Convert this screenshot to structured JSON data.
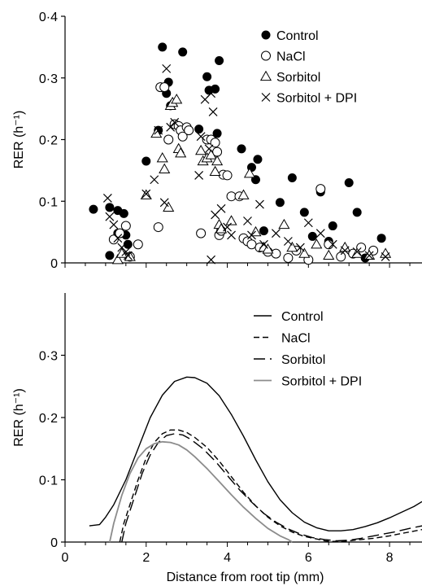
{
  "chart_data": [
    {
      "type": "scatter",
      "title": "",
      "xlabel": "",
      "ylabel": "RER (h⁻¹)",
      "xlim": [
        0,
        8.8
      ],
      "ylim": [
        0,
        0.4
      ],
      "yticks": [
        0,
        0.1,
        0.2,
        0.3,
        0.4
      ],
      "ytick_labels": [
        "0",
        "0·1",
        "0·2",
        "0·3",
        "0·4"
      ],
      "xticks_minor_step": 0.5,
      "grid": false,
      "legend_position": "top-right",
      "series": [
        {
          "name": "Control",
          "marker": "filled-circle",
          "points": [
            [
              0.7,
              0.087
            ],
            [
              1.1,
              0.09
            ],
            [
              1.1,
              0.012
            ],
            [
              1.3,
              0.085
            ],
            [
              1.3,
              0.048
            ],
            [
              1.45,
              0.08
            ],
            [
              1.5,
              0.045
            ],
            [
              1.55,
              0.03
            ],
            [
              2.0,
              0.165
            ],
            [
              2.3,
              0.215
            ],
            [
              2.4,
              0.35
            ],
            [
              2.5,
              0.275
            ],
            [
              2.55,
              0.293
            ],
            [
              2.6,
              0.255
            ],
            [
              2.9,
              0.342
            ],
            [
              3.3,
              0.217
            ],
            [
              3.5,
              0.302
            ],
            [
              3.55,
              0.28
            ],
            [
              3.7,
              0.282
            ],
            [
              3.75,
              0.21
            ],
            [
              3.8,
              0.328
            ],
            [
              4.35,
              0.185
            ],
            [
              4.6,
              0.155
            ],
            [
              4.7,
              0.135
            ],
            [
              4.75,
              0.168
            ],
            [
              4.9,
              0.052
            ],
            [
              5.3,
              0.098
            ],
            [
              5.6,
              0.138
            ],
            [
              5.9,
              0.082
            ],
            [
              6.1,
              0.043
            ],
            [
              6.3,
              0.115
            ],
            [
              6.5,
              0.035
            ],
            [
              6.6,
              0.06
            ],
            [
              7.0,
              0.13
            ],
            [
              7.2,
              0.082
            ],
            [
              7.4,
              0.008
            ],
            [
              7.8,
              0.04
            ]
          ]
        },
        {
          "name": "NaCl",
          "marker": "open-circle",
          "points": [
            [
              1.2,
              0.038
            ],
            [
              1.35,
              0.048
            ],
            [
              1.5,
              0.06
            ],
            [
              1.6,
              0.01
            ],
            [
              1.8,
              0.03
            ],
            [
              2.3,
              0.058
            ],
            [
              2.35,
              0.285
            ],
            [
              2.45,
              0.285
            ],
            [
              2.55,
              0.2
            ],
            [
              2.7,
              0.225
            ],
            [
              2.8,
              0.222
            ],
            [
              2.85,
              0.215
            ],
            [
              2.9,
              0.205
            ],
            [
              3.0,
              0.22
            ],
            [
              3.05,
              0.215
            ],
            [
              3.35,
              0.048
            ],
            [
              3.5,
              0.2
            ],
            [
              3.6,
              0.2
            ],
            [
              3.7,
              0.195
            ],
            [
              3.75,
              0.18
            ],
            [
              3.8,
              0.045
            ],
            [
              3.85,
              0.052
            ],
            [
              3.9,
              0.143
            ],
            [
              4.0,
              0.142
            ],
            [
              4.1,
              0.108
            ],
            [
              4.3,
              0.108
            ],
            [
              4.4,
              0.04
            ],
            [
              4.5,
              0.035
            ],
            [
              4.6,
              0.03
            ],
            [
              4.8,
              0.025
            ],
            [
              5.0,
              0.018
            ],
            [
              5.2,
              0.015
            ],
            [
              5.5,
              0.008
            ],
            [
              5.7,
              0.02
            ],
            [
              6.0,
              0.005
            ],
            [
              6.3,
              0.12
            ],
            [
              6.5,
              0.03
            ],
            [
              6.8,
              0.01
            ],
            [
              7.1,
              0.015
            ],
            [
              7.3,
              0.025
            ],
            [
              7.6,
              0.02
            ]
          ]
        },
        {
          "name": "Sorbitol",
          "marker": "open-triangle",
          "points": [
            [
              1.3,
              0.005
            ],
            [
              1.4,
              0.015
            ],
            [
              1.6,
              0.01
            ],
            [
              2.0,
              0.11
            ],
            [
              2.25,
              0.21
            ],
            [
              2.4,
              0.17
            ],
            [
              2.45,
              0.152
            ],
            [
              2.55,
              0.09
            ],
            [
              2.6,
              0.255
            ],
            [
              2.65,
              0.26
            ],
            [
              2.75,
              0.265
            ],
            [
              2.8,
              0.185
            ],
            [
              2.85,
              0.178
            ],
            [
              3.35,
              0.182
            ],
            [
              3.4,
              0.165
            ],
            [
              3.5,
              0.17
            ],
            [
              3.6,
              0.175
            ],
            [
              3.7,
              0.148
            ],
            [
              3.75,
              0.165
            ],
            [
              3.8,
              0.062
            ],
            [
              3.85,
              0.055
            ],
            [
              4.1,
              0.068
            ],
            [
              4.4,
              0.11
            ],
            [
              4.55,
              0.145
            ],
            [
              4.7,
              0.05
            ],
            [
              4.9,
              0.025
            ],
            [
              5.0,
              0.022
            ],
            [
              5.4,
              0.062
            ],
            [
              5.6,
              0.025
            ],
            [
              5.9,
              0.015
            ],
            [
              6.2,
              0.03
            ],
            [
              6.5,
              0.012
            ],
            [
              6.9,
              0.025
            ],
            [
              7.2,
              0.015
            ],
            [
              7.5,
              0.012
            ],
            [
              7.9,
              0.015
            ]
          ]
        },
        {
          "name": "Sorbitol + DPI",
          "marker": "x",
          "points": [
            [
              1.05,
              0.105
            ],
            [
              1.1,
              0.075
            ],
            [
              1.2,
              0.062
            ],
            [
              1.3,
              0.04
            ],
            [
              1.4,
              0.025
            ],
            [
              1.5,
              0.018
            ],
            [
              1.55,
              0.012
            ],
            [
              2.0,
              0.112
            ],
            [
              2.2,
              0.135
            ],
            [
              2.3,
              0.215
            ],
            [
              2.45,
              0.098
            ],
            [
              2.5,
              0.315
            ],
            [
              2.6,
              0.22
            ],
            [
              2.7,
              0.228
            ],
            [
              3.3,
              0.142
            ],
            [
              3.35,
              0.205
            ],
            [
              3.45,
              0.265
            ],
            [
              3.55,
              0.185
            ],
            [
              3.6,
              0.275
            ],
            [
              3.65,
              0.245
            ],
            [
              3.7,
              0.078
            ],
            [
              3.6,
              0.005
            ],
            [
              3.85,
              0.088
            ],
            [
              4.0,
              0.058
            ],
            [
              4.1,
              0.045
            ],
            [
              4.5,
              0.068
            ],
            [
              4.6,
              0.045
            ],
            [
              4.8,
              0.095
            ],
            [
              4.9,
              0.03
            ],
            [
              5.2,
              0.048
            ],
            [
              5.5,
              0.035
            ],
            [
              5.8,
              0.025
            ],
            [
              6.0,
              0.065
            ],
            [
              6.3,
              0.048
            ],
            [
              6.6,
              0.03
            ],
            [
              6.9,
              0.02
            ],
            [
              7.2,
              0.018
            ],
            [
              7.5,
              0.012
            ],
            [
              7.9,
              0.01
            ]
          ]
        }
      ]
    },
    {
      "type": "line",
      "title": "",
      "xlabel": "Distance from root tip (mm)",
      "ylabel": "RER (h⁻¹)",
      "xlim": [
        0,
        8.8
      ],
      "ylim": [
        0,
        0.4
      ],
      "xticks": [
        0,
        2,
        4,
        6,
        8
      ],
      "xtick_labels": [
        "0",
        "2",
        "4",
        "6",
        "8"
      ],
      "yticks": [
        0,
        0.1,
        0.2,
        0.3
      ],
      "ytick_labels": [
        "0",
        "0·1",
        "0·2",
        "0·3"
      ],
      "xticks_minor_step": 0.5,
      "grid": false,
      "legend_position": "top-right",
      "series": [
        {
          "name": "Control",
          "style": "solid-black",
          "x": [
            0.6,
            0.85,
            1.0,
            1.2,
            1.5,
            1.8,
            2.1,
            2.4,
            2.7,
            3.0,
            3.2,
            3.5,
            3.8,
            4.1,
            4.4,
            4.7,
            5.0,
            5.3,
            5.6,
            5.9,
            6.2,
            6.5,
            6.8,
            7.1,
            7.4,
            7.7,
            8.0,
            8.3,
            8.6,
            8.8
          ],
          "y": [
            0.026,
            0.028,
            0.04,
            0.06,
            0.1,
            0.15,
            0.2,
            0.236,
            0.258,
            0.265,
            0.264,
            0.255,
            0.235,
            0.205,
            0.17,
            0.132,
            0.097,
            0.068,
            0.047,
            0.032,
            0.023,
            0.018,
            0.018,
            0.02,
            0.025,
            0.031,
            0.039,
            0.048,
            0.057,
            0.065
          ]
        },
        {
          "name": "NaCl",
          "style": "short-dash",
          "x": [
            1.35,
            1.45,
            1.6,
            1.8,
            2.0,
            2.2,
            2.4,
            2.6,
            2.8,
            3.0,
            3.2,
            3.5,
            3.8,
            4.1,
            4.4,
            4.7,
            5.0,
            5.3,
            5.6,
            5.9,
            6.2,
            6.4,
            6.6,
            6.8,
            7.0,
            7.3,
            7.6,
            8.0,
            8.4,
            8.8
          ],
          "y": [
            0,
            0.03,
            0.06,
            0.1,
            0.135,
            0.16,
            0.174,
            0.18,
            0.18,
            0.176,
            0.168,
            0.152,
            0.13,
            0.105,
            0.08,
            0.058,
            0.04,
            0.026,
            0.016,
            0.009,
            0.005,
            0.002,
            0.001,
            0.001,
            0.002,
            0.004,
            0.006,
            0.01,
            0.015,
            0.02
          ]
        },
        {
          "name": "Sorbitol",
          "style": "long-dash",
          "x": [
            1.4,
            1.5,
            1.7,
            1.9,
            2.1,
            2.3,
            2.5,
            2.7,
            2.9,
            3.1,
            3.4,
            3.7,
            4.0,
            4.3,
            4.6,
            4.9,
            5.2,
            5.5,
            5.8,
            6.1,
            6.4,
            6.7,
            7.0,
            7.3,
            7.7,
            8.1,
            8.5,
            8.8
          ],
          "y": [
            0,
            0.03,
            0.07,
            0.11,
            0.14,
            0.16,
            0.171,
            0.174,
            0.172,
            0.165,
            0.15,
            0.13,
            0.107,
            0.084,
            0.064,
            0.046,
            0.032,
            0.021,
            0.013,
            0.007,
            0.004,
            0.002,
            0.003,
            0.006,
            0.011,
            0.016,
            0.022,
            0.026
          ]
        },
        {
          "name": "Sorbitol + DPI",
          "style": "solid-grey",
          "x": [
            1.1,
            1.2,
            1.4,
            1.6,
            1.8,
            2.0,
            2.2,
            2.4,
            2.6,
            2.8,
            3.0,
            3.2,
            3.5,
            3.8,
            4.1,
            4.4,
            4.7,
            5.0,
            5.3,
            5.5,
            5.6
          ],
          "y": [
            0,
            0.03,
            0.075,
            0.11,
            0.135,
            0.15,
            0.158,
            0.161,
            0.16,
            0.156,
            0.148,
            0.137,
            0.118,
            0.097,
            0.076,
            0.056,
            0.038,
            0.022,
            0.01,
            0.004,
            0
          ]
        }
      ]
    }
  ]
}
